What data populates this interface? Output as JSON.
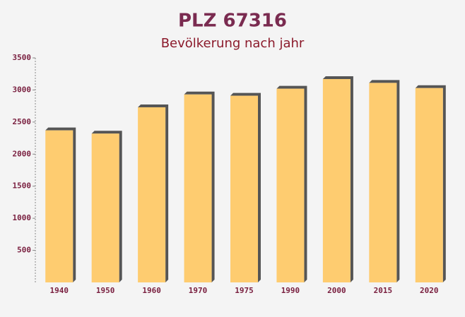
{
  "chart_data": {
    "type": "bar",
    "title": "PLZ 67316",
    "subtitle": "Bevölkerung nach jahr",
    "categories": [
      "1940",
      "1950",
      "1960",
      "1970",
      "1975",
      "1990",
      "2000",
      "2015",
      "2020"
    ],
    "values": [
      2370,
      2320,
      2730,
      2930,
      2910,
      3020,
      3170,
      3110,
      3030
    ],
    "color": "#ffc862",
    "ylim": [
      0,
      3500
    ],
    "yticks": [
      500,
      1000,
      1500,
      2000,
      2500,
      3000,
      3500
    ],
    "grid": false
  }
}
